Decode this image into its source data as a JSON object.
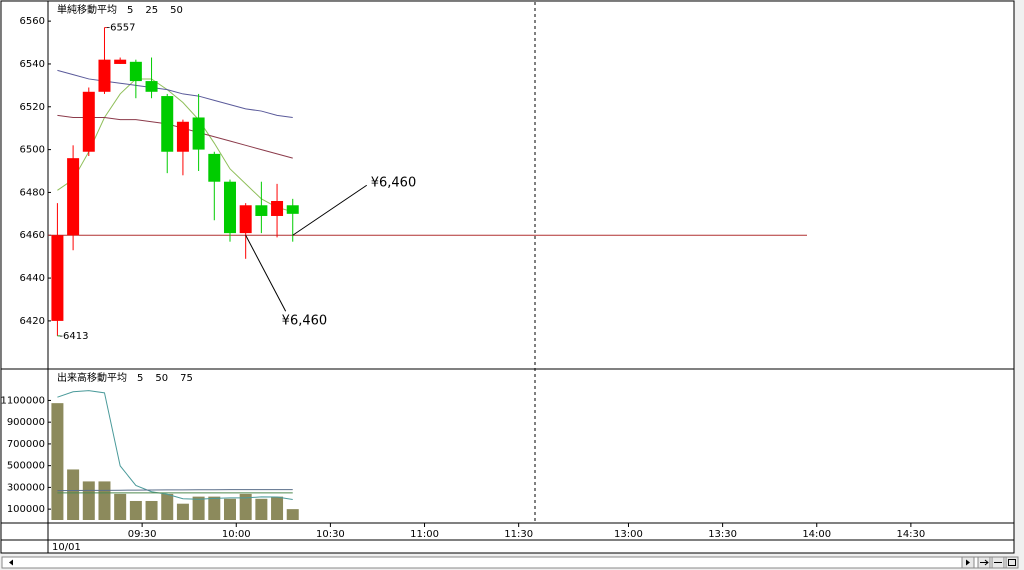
{
  "chart_data": [
    {
      "type": "candlestick",
      "title": "単純移動平均",
      "title_color": "#8a8a5a",
      "up_color": "#ff0000",
      "down_color": "#00cc00",
      "x": [
        3,
        8,
        13,
        18,
        23,
        28,
        33,
        38,
        43,
        48,
        53,
        58,
        63,
        68,
        73,
        78
      ],
      "open": [
        6420,
        6460,
        6499,
        6527,
        6540,
        6541,
        6532,
        6525,
        6499,
        6515,
        6498,
        6485,
        6461,
        6474,
        6469,
        6474
      ],
      "high": [
        6475,
        6502,
        6529,
        6557,
        6543,
        6542,
        6543,
        6526,
        6514,
        6526,
        6499,
        6486,
        6475,
        6485,
        6484,
        6477
      ],
      "low": [
        6413,
        6453,
        6497,
        6526,
        6540,
        6524,
        6524,
        6489,
        6488,
        6490,
        6467,
        6457,
        6449,
        6461,
        6459,
        6457
      ],
      "close": [
        6460,
        6496,
        6527,
        6542,
        6542,
        6532,
        6527,
        6499,
        6513,
        6500,
        6485,
        6461,
        6474,
        6469,
        6476,
        6470
      ],
      "series": [
        {
          "name": "5",
          "color": "#8fbf5a",
          "values": [
            6481,
            6486,
            6499,
            6515,
            6526,
            6533,
            6533,
            6528,
            6522,
            6514,
            6503,
            6491,
            6484,
            6477,
            6473,
            6471
          ]
        },
        {
          "name": "25",
          "color": "#8b3a4a",
          "values": [
            6516,
            6515,
            6515,
            6515,
            6514,
            6514,
            6513,
            6512,
            6510,
            6508,
            6506,
            6504,
            6502,
            6500,
            6498,
            6496
          ]
        },
        {
          "name": "50",
          "color": "#5a5a9a",
          "values": [
            6537,
            6535,
            6533,
            6532,
            6531,
            6530,
            6529,
            6528,
            6526,
            6525,
            6523,
            6521,
            6519,
            6518,
            6516,
            6515
          ]
        }
      ],
      "extremes": [
        {
          "x": 18,
          "value": 6557,
          "label": "-6557",
          "color": "#e02020"
        },
        {
          "x": 3,
          "value": 6413,
          "label": "-6413",
          "color": "#20a020"
        }
      ],
      "price_line": {
        "value": 6460,
        "color": "#b03030"
      },
      "annotations": [
        {
          "x": 78,
          "value": 6460,
          "label": "¥6,460"
        },
        {
          "x": 63,
          "value": 6460,
          "label": "¥6,460"
        }
      ],
      "xlim": [
        0,
        305
      ],
      "ylim": [
        6398,
        6568
      ],
      "yticks": [
        6420,
        6440,
        6460,
        6480,
        6500,
        6520,
        6540,
        6560
      ]
    },
    {
      "type": "bar",
      "title": "出来高移動平均",
      "title_color": "#4a9a9a",
      "color": "#8c8a5c",
      "x": [
        3,
        8,
        13,
        18,
        23,
        28,
        33,
        38,
        43,
        48,
        53,
        58,
        63,
        68,
        73,
        78
      ],
      "values": [
        1075000,
        465000,
        355000,
        355000,
        240000,
        175000,
        175000,
        240000,
        150000,
        215000,
        215000,
        195000,
        240000,
        195000,
        215000,
        100000
      ],
      "series": [
        {
          "name": "5",
          "color": "#4a9a9a",
          "values": [
            1130000,
            1180000,
            1190000,
            1170000,
            498000,
            318000,
            260000,
            237000,
            196000,
            191000,
            199000,
            203000,
            203000,
            213000,
            212000,
            189000
          ]
        },
        {
          "name": "50",
          "color": "#5a6e8a",
          "values": [
            270000,
            271000,
            272000,
            273000,
            274000,
            275000,
            276000,
            277000,
            277000,
            278000,
            278000,
            279000,
            279000,
            280000,
            280000,
            280000
          ]
        },
        {
          "name": "75",
          "color": "#4f8a4f",
          "values": [
            250000,
            250000,
            250000,
            250000,
            250000,
            250000,
            250000,
            250000,
            250000,
            250000,
            250000,
            250000,
            250000,
            250000,
            250000,
            250000
          ]
        }
      ],
      "xlim": [
        0,
        305
      ],
      "ylim": [
        0,
        1380000
      ],
      "yticks": [
        100000,
        300000,
        500000,
        700000,
        900000,
        1100000
      ],
      "xticks": [
        {
          "value": 30,
          "label": "09:30"
        },
        {
          "value": 60,
          "label": "10:00"
        },
        {
          "value": 90,
          "label": "10:30"
        },
        {
          "value": 120,
          "label": "11:00"
        },
        {
          "value": 150,
          "label": "11:30"
        },
        {
          "value": 185,
          "label": "13:00"
        },
        {
          "value": 215,
          "label": "13:30"
        },
        {
          "value": 245,
          "label": "14:00"
        },
        {
          "value": 275,
          "label": "14:30"
        }
      ],
      "xlabel": "10/01"
    }
  ]
}
